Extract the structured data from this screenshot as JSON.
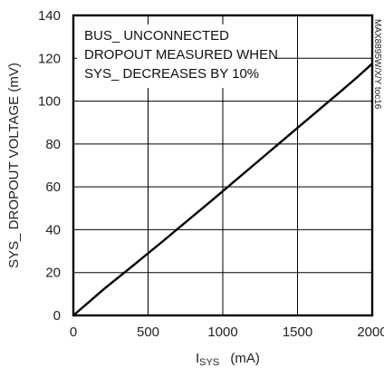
{
  "chart_data": {
    "type": "line",
    "title": "",
    "xlabel": "ISYS",
    "xlabel_unit": "(mA)",
    "ylabel": "SYS_ DROPOUT VOLTAGE (mV)",
    "xlim": [
      0,
      2000
    ],
    "ylim": [
      0,
      140
    ],
    "x_ticks": [
      0,
      500,
      1000,
      1500,
      2000
    ],
    "y_ticks": [
      0,
      20,
      40,
      60,
      80,
      100,
      120,
      140
    ],
    "grid": true,
    "annotations": [
      "BUS_ UNCONNECTED",
      "DROPOUT MEASURED WHEN",
      "SYS_ DECREASES BY 10%"
    ],
    "figure_code": "MAX8895W/X/Y toc16",
    "series": [
      {
        "x": [
          0,
          50,
          100,
          200,
          300,
          400,
          500,
          600,
          700,
          800,
          900,
          1000,
          1100,
          1200,
          1300,
          1400,
          1500,
          1600,
          1700,
          1800,
          1900,
          2000
        ],
        "y": [
          0,
          3,
          6,
          12,
          17.7,
          23.3,
          29,
          34.7,
          40.5,
          46.3,
          52.1,
          58,
          63.9,
          69.8,
          75.7,
          81.6,
          87.5,
          93.4,
          99.3,
          105.2,
          111.2,
          117.5
        ]
      }
    ]
  }
}
